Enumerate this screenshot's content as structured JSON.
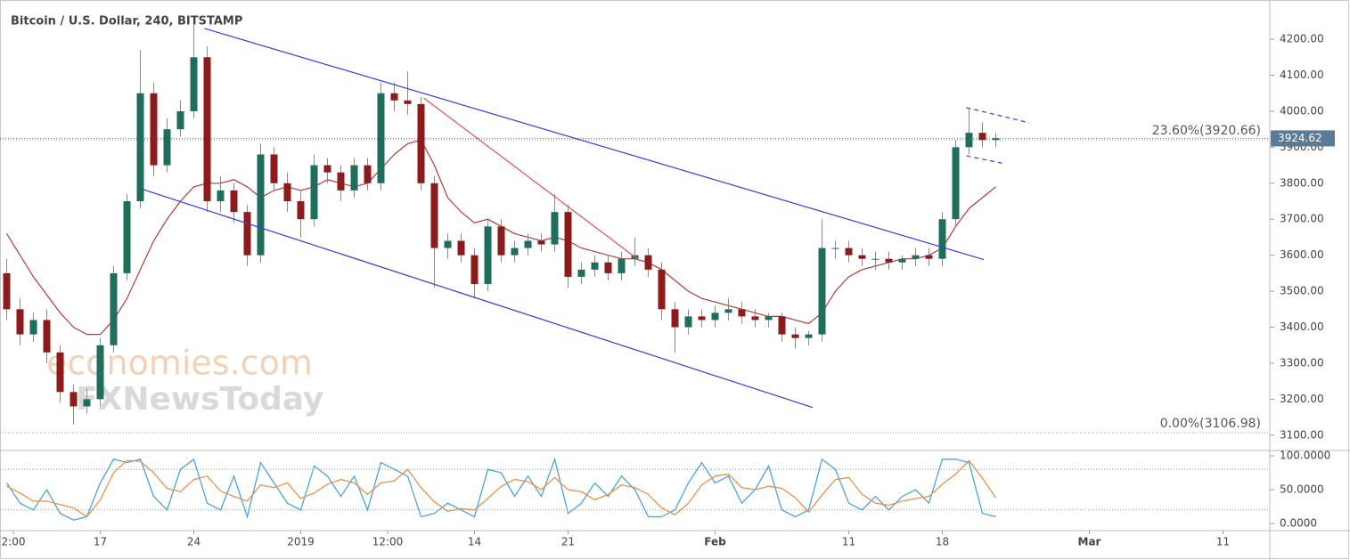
{
  "chart_data": [
    {
      "type": "candlestick",
      "title": "Bitcoin / U.S. Dollar, 240, BITSTAMP",
      "xlim": [
        -0.5,
        94.5
      ],
      "xticks": [
        {
          "value": 0.5,
          "label": "2:00"
        },
        {
          "value": 7,
          "label": "17"
        },
        {
          "value": 14,
          "label": "24"
        },
        {
          "value": 22,
          "label": "2019"
        },
        {
          "value": 28.5,
          "label": "12:00"
        },
        {
          "value": 35,
          "label": "14"
        },
        {
          "value": 42,
          "label": "21"
        },
        {
          "value": 53,
          "label": "Feb"
        },
        {
          "value": 63,
          "label": "11"
        },
        {
          "value": 70,
          "label": "18"
        },
        {
          "value": 81,
          "label": "Mar"
        },
        {
          "value": 91,
          "label": "11"
        }
      ],
      "ylim": [
        3060,
        4309
      ],
      "yticks": [
        {
          "value": 3100,
          "label": "3100.00"
        },
        {
          "value": 3200,
          "label": "3200.00"
        },
        {
          "value": 3300,
          "label": "3300.00"
        },
        {
          "value": 3400,
          "label": "3400.00"
        },
        {
          "value": 3500,
          "label": "3500.00"
        },
        {
          "value": 3600,
          "label": "3600.00"
        },
        {
          "value": 3700,
          "label": "3700.00"
        },
        {
          "value": 3800,
          "label": "3800.00"
        },
        {
          "value": 3900,
          "label": "3900.00"
        },
        {
          "value": 4000,
          "label": "4000.00"
        },
        {
          "value": 4100,
          "label": "4100.00"
        },
        {
          "value": 4200,
          "label": "4200.00"
        }
      ],
      "up_color": "#1f6e5c",
      "down_color": "#8e1b1b",
      "wick_color": "#8a8a8a",
      "open": [
        3550,
        3450,
        3380,
        3420,
        3330,
        3220,
        3180,
        3200,
        3350,
        3550,
        3750,
        4050,
        3850,
        3950,
        4000,
        4150,
        3750,
        3780,
        3720,
        3600,
        3880,
        3800,
        3750,
        3700,
        3850,
        3830,
        3780,
        3850,
        3800,
        4050,
        4030,
        4020,
        3800,
        3620,
        3640,
        3600,
        3520,
        3680,
        3600,
        3620,
        3640,
        3630,
        3720,
        3540,
        3560,
        3580,
        3550,
        3590,
        3600,
        3560,
        3450,
        3400,
        3430,
        3420,
        3440,
        3450,
        3430,
        3420,
        3430,
        3380,
        3370,
        3380,
        3620,
        3620,
        3600,
        3590,
        3590,
        3580,
        3590,
        3600,
        3590,
        3700,
        3900,
        3940,
        3920
      ],
      "high": [
        3590,
        3480,
        3440,
        3450,
        3350,
        3240,
        3230,
        3370,
        3570,
        3770,
        4170,
        4080,
        3980,
        4030,
        4240,
        4180,
        3820,
        3800,
        3740,
        3910,
        3900,
        3830,
        3780,
        3880,
        3870,
        3850,
        3870,
        3870,
        4080,
        4080,
        4110,
        4040,
        3820,
        3660,
        3660,
        3620,
        3700,
        3700,
        3640,
        3660,
        3660,
        3770,
        3740,
        3580,
        3600,
        3600,
        3610,
        3650,
        3620,
        3580,
        3470,
        3450,
        3450,
        3460,
        3480,
        3470,
        3450,
        3440,
        3440,
        3400,
        3390,
        3700,
        3640,
        3640,
        3620,
        3610,
        3610,
        3600,
        3620,
        3620,
        3720,
        3920,
        4010,
        3970,
        3940
      ],
      "low": [
        3420,
        3350,
        3360,
        3300,
        3190,
        3130,
        3160,
        3180,
        3330,
        3530,
        3730,
        3820,
        3830,
        3930,
        3980,
        3720,
        3720,
        3690,
        3570,
        3580,
        3780,
        3720,
        3650,
        3680,
        3800,
        3750,
        3760,
        3780,
        3780,
        4000,
        3990,
        3780,
        3510,
        3590,
        3580,
        3480,
        3500,
        3580,
        3580,
        3600,
        3610,
        3610,
        3510,
        3520,
        3540,
        3530,
        3530,
        3570,
        3540,
        3420,
        3330,
        3380,
        3400,
        3400,
        3420,
        3410,
        3400,
        3400,
        3360,
        3340,
        3350,
        3360,
        3590,
        3580,
        3570,
        3560,
        3560,
        3560,
        3570,
        3570,
        3570,
        3680,
        3880,
        3900,
        3900
      ],
      "close": [
        3450,
        3380,
        3420,
        3330,
        3220,
        3180,
        3200,
        3350,
        3550,
        3750,
        4050,
        3850,
        3950,
        4000,
        4150,
        3750,
        3780,
        3720,
        3600,
        3880,
        3800,
        3750,
        3700,
        3850,
        3830,
        3780,
        3850,
        3800,
        4050,
        4030,
        4020,
        3800,
        3620,
        3640,
        3600,
        3520,
        3680,
        3600,
        3620,
        3640,
        3630,
        3720,
        3540,
        3560,
        3580,
        3550,
        3590,
        3600,
        3560,
        3450,
        3400,
        3430,
        3420,
        3440,
        3450,
        3430,
        3420,
        3430,
        3380,
        3370,
        3380,
        3620,
        3620,
        3600,
        3590,
        3590,
        3580,
        3590,
        3600,
        3590,
        3700,
        3900,
        3940,
        3920,
        3925
      ],
      "moving_average": {
        "color": "#b23a3a",
        "values": [
          3660,
          3600,
          3540,
          3490,
          3440,
          3400,
          3380,
          3380,
          3420,
          3480,
          3560,
          3640,
          3700,
          3750,
          3790,
          3800,
          3800,
          3810,
          3790,
          3760,
          3780,
          3790,
          3780,
          3790,
          3810,
          3800,
          3790,
          3800,
          3840,
          3880,
          3910,
          3920,
          3850,
          3760,
          3720,
          3690,
          3700,
          3680,
          3660,
          3650,
          3640,
          3650,
          3640,
          3620,
          3610,
          3600,
          3590,
          3590,
          3580,
          3560,
          3530,
          3500,
          3480,
          3470,
          3460,
          3450,
          3440,
          3430,
          3430,
          3420,
          3410,
          3440,
          3500,
          3540,
          3560,
          3570,
          3580,
          3590,
          3590,
          3600,
          3620,
          3680,
          3730,
          3760,
          3790
        ]
      },
      "last_price": 3924.62,
      "last_price_color": "#5b7a96",
      "fib_levels": [
        {
          "value": 3920.66,
          "label": "23.60%(3920.66)"
        },
        {
          "value": 3106.98,
          "label": "0.00%(3106.98)"
        }
      ],
      "trendlines": [
        {
          "color": "#3a3ae0",
          "dashed": false,
          "points": [
            [
              14.8,
              4230
            ],
            [
              73.1,
              3588
            ]
          ]
        },
        {
          "color": "#3a3ae0",
          "dashed": false,
          "points": [
            [
              10,
              3785
            ],
            [
              60.3,
              3177
            ]
          ]
        },
        {
          "color": "#e05050",
          "dashed": false,
          "points": [
            [
              31.2,
              4037
            ],
            [
              47.4,
              3584
            ]
          ]
        },
        {
          "color": "#3a3ae0",
          "dashed": true,
          "points": [
            [
              71.8,
              4010
            ],
            [
              76.5,
              3968
            ]
          ]
        },
        {
          "color": "#3a3ae0",
          "dashed": true,
          "points": [
            [
              71.8,
              3876
            ],
            [
              74.7,
              3854
            ]
          ]
        }
      ],
      "watermark": [
        "economies.com",
        "FXNewsToday"
      ]
    },
    {
      "type": "line",
      "ylim": [
        -9.2,
        106.6
      ],
      "yticks": [
        {
          "value": 0,
          "label": "0.0000"
        },
        {
          "value": 50,
          "label": "50.0000"
        },
        {
          "value": 100,
          "label": "100.0000"
        }
      ],
      "levels": [
        80,
        20
      ],
      "series": [
        {
          "color": "#4aa3df",
          "values": [
            60,
            30,
            20,
            50,
            15,
            5,
            10,
            60,
            95,
            90,
            95,
            40,
            20,
            80,
            95,
            30,
            20,
            70,
            10,
            90,
            60,
            30,
            20,
            85,
            70,
            40,
            70,
            20,
            90,
            80,
            70,
            10,
            15,
            30,
            20,
            10,
            80,
            75,
            40,
            70,
            40,
            95,
            15,
            30,
            60,
            40,
            70,
            50,
            10,
            10,
            20,
            60,
            90,
            60,
            70,
            30,
            50,
            85,
            20,
            10,
            20,
            95,
            80,
            30,
            20,
            40,
            20,
            40,
            50,
            30,
            95,
            95,
            90,
            15,
            10
          ]
        },
        {
          "color": "#e8914a",
          "values": [
            55,
            45,
            33,
            33,
            28,
            23,
            10,
            35,
            75,
            93,
            92,
            75,
            52,
            47,
            65,
            70,
            48,
            40,
            33,
            57,
            53,
            60,
            37,
            45,
            58,
            65,
            60,
            43,
            60,
            63,
            80,
            53,
            32,
            18,
            22,
            20,
            37,
            55,
            65,
            62,
            50,
            68,
            50,
            47,
            35,
            43,
            57,
            53,
            43,
            23,
            13,
            30,
            57,
            70,
            73,
            53,
            50,
            55,
            52,
            38,
            17,
            42,
            65,
            68,
            43,
            30,
            27,
            33,
            37,
            40,
            58,
            73,
            93,
            67,
            38
          ]
        }
      ]
    }
  ]
}
